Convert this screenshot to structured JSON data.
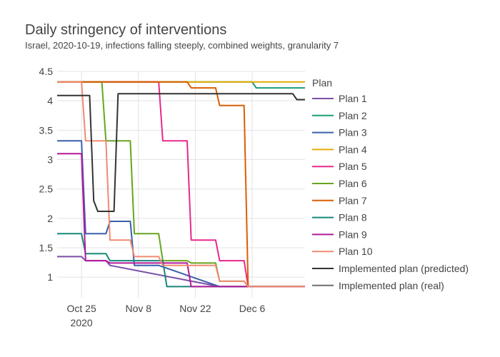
{
  "chart_data": {
    "type": "line",
    "title": "Daily stringency of interventions",
    "subtitle": "Israel, 2020-10-19, infections falling steeply, combined weights, granularity 7",
    "xlabel": "",
    "ylabel": "",
    "xlim": [
      "2020-10-19",
      "2020-12-19"
    ],
    "ylim": [
      0.65,
      4.5
    ],
    "y_ticks": [
      1,
      1.5,
      2,
      2.5,
      3,
      3.5,
      4,
      4.5
    ],
    "y_tick_labels": [
      "1",
      "1.5",
      "2",
      "2.5",
      "3",
      "3.5",
      "4",
      "4.5"
    ],
    "x_ticks": [
      "2020-10-25",
      "2020-11-08",
      "2020-11-22",
      "2020-12-06"
    ],
    "x_tick_labels": [
      "Oct 25",
      "Nov 8",
      "Nov 22",
      "Dec 6"
    ],
    "x_tick_sublabel": "2020",
    "grid": true,
    "legend_title": "Plan",
    "legend_position": "right",
    "series": [
      {
        "name": "Plan 1",
        "color": "#7b4fa8",
        "x": [
          "2020-10-19",
          "2020-10-25",
          "2020-10-26",
          "2020-10-31",
          "2020-11-01",
          "2020-11-28",
          "2020-12-19"
        ],
        "y": [
          1.35,
          1.35,
          1.28,
          1.28,
          1.2,
          0.84,
          0.84
        ]
      },
      {
        "name": "Plan 2",
        "color": "#1b9e77",
        "x": [
          "2020-10-19",
          "2020-11-01",
          "2020-11-15",
          "2020-11-28",
          "2020-12-06",
          "2020-12-07",
          "2020-12-19"
        ],
        "y": [
          4.32,
          4.32,
          4.32,
          4.32,
          4.32,
          4.22,
          4.22
        ]
      },
      {
        "name": "Plan 3",
        "color": "#3a5fac",
        "x": [
          "2020-10-19",
          "2020-10-25",
          "2020-10-26",
          "2020-10-31",
          "2020-11-01",
          "2020-11-06",
          "2020-11-07",
          "2020-11-13",
          "2020-11-28",
          "2020-12-19"
        ],
        "y": [
          3.32,
          3.32,
          1.74,
          1.74,
          1.95,
          1.95,
          1.2,
          1.2,
          0.84,
          0.84
        ]
      },
      {
        "name": "Plan 4",
        "color": "#e6ab02",
        "x": [
          "2020-10-19",
          "2020-11-19",
          "2020-12-19"
        ],
        "y": [
          4.32,
          4.32,
          4.32
        ]
      },
      {
        "name": "Plan 5",
        "color": "#e7298a",
        "x": [
          "2020-10-19",
          "2020-11-13",
          "2020-11-14",
          "2020-11-20",
          "2020-11-21",
          "2020-11-27",
          "2020-11-28",
          "2020-12-04",
          "2020-12-05",
          "2020-12-19"
        ],
        "y": [
          4.32,
          4.32,
          3.32,
          3.32,
          1.63,
          1.63,
          1.28,
          1.28,
          0.84,
          0.84
        ]
      },
      {
        "name": "Plan 6",
        "color": "#66a61e",
        "x": [
          "2020-10-19",
          "2020-10-30",
          "2020-10-31",
          "2020-11-06",
          "2020-11-07",
          "2020-11-13",
          "2020-11-14",
          "2020-11-20",
          "2020-11-21",
          "2020-11-27",
          "2020-11-28",
          "2020-12-04",
          "2020-12-05",
          "2020-12-19"
        ],
        "y": [
          4.32,
          4.32,
          3.32,
          3.32,
          1.74,
          1.74,
          1.28,
          1.28,
          1.24,
          1.24,
          0.93,
          0.93,
          0.84,
          0.84
        ]
      },
      {
        "name": "Plan 7",
        "color": "#d95f02",
        "x": [
          "2020-10-19",
          "2020-11-20",
          "2020-11-21",
          "2020-11-27",
          "2020-11-28",
          "2020-12-04",
          "2020-12-05",
          "2020-12-19"
        ],
        "y": [
          4.32,
          4.32,
          4.22,
          4.22,
          3.92,
          3.92,
          0.84,
          0.84
        ]
      },
      {
        "name": "Plan 8",
        "color": "#17877a",
        "x": [
          "2020-10-19",
          "2020-10-25",
          "2020-10-26",
          "2020-10-31",
          "2020-11-01",
          "2020-11-14",
          "2020-11-15",
          "2020-12-19"
        ],
        "y": [
          1.74,
          1.74,
          1.4,
          1.4,
          1.28,
          1.28,
          0.84,
          0.84
        ]
      },
      {
        "name": "Plan 9",
        "color": "#b5199b",
        "x": [
          "2020-10-19",
          "2020-10-25",
          "2020-10-26",
          "2020-10-31",
          "2020-11-01",
          "2020-11-20",
          "2020-11-21",
          "2020-12-19"
        ],
        "y": [
          3.1,
          3.1,
          1.28,
          1.28,
          1.24,
          1.24,
          0.84,
          0.84
        ]
      },
      {
        "name": "Plan 10",
        "color": "#f08a72",
        "x": [
          "2020-10-19",
          "2020-10-25",
          "2020-10-26",
          "2020-10-31",
          "2020-11-01",
          "2020-11-06",
          "2020-11-07",
          "2020-11-13",
          "2020-11-14",
          "2020-11-27",
          "2020-11-28",
          "2020-12-04",
          "2020-12-05",
          "2020-12-19"
        ],
        "y": [
          4.32,
          4.32,
          3.32,
          3.32,
          1.63,
          1.63,
          1.35,
          1.35,
          1.2,
          1.2,
          0.93,
          0.93,
          0.84,
          0.84
        ]
      },
      {
        "name": "Implemented plan (predicted)",
        "color": "#333333",
        "x": [
          "2020-10-19",
          "2020-10-27",
          "2020-10-28",
          "2020-10-29",
          "2020-11-02",
          "2020-11-03",
          "2020-12-16",
          "2020-12-17",
          "2020-12-19"
        ],
        "y": [
          4.09,
          4.09,
          2.3,
          2.12,
          2.12,
          4.12,
          4.12,
          4.02,
          4.02
        ]
      },
      {
        "name": "Implemented plan (real)",
        "color": "#6e6e6e",
        "x": [],
        "y": []
      }
    ]
  }
}
